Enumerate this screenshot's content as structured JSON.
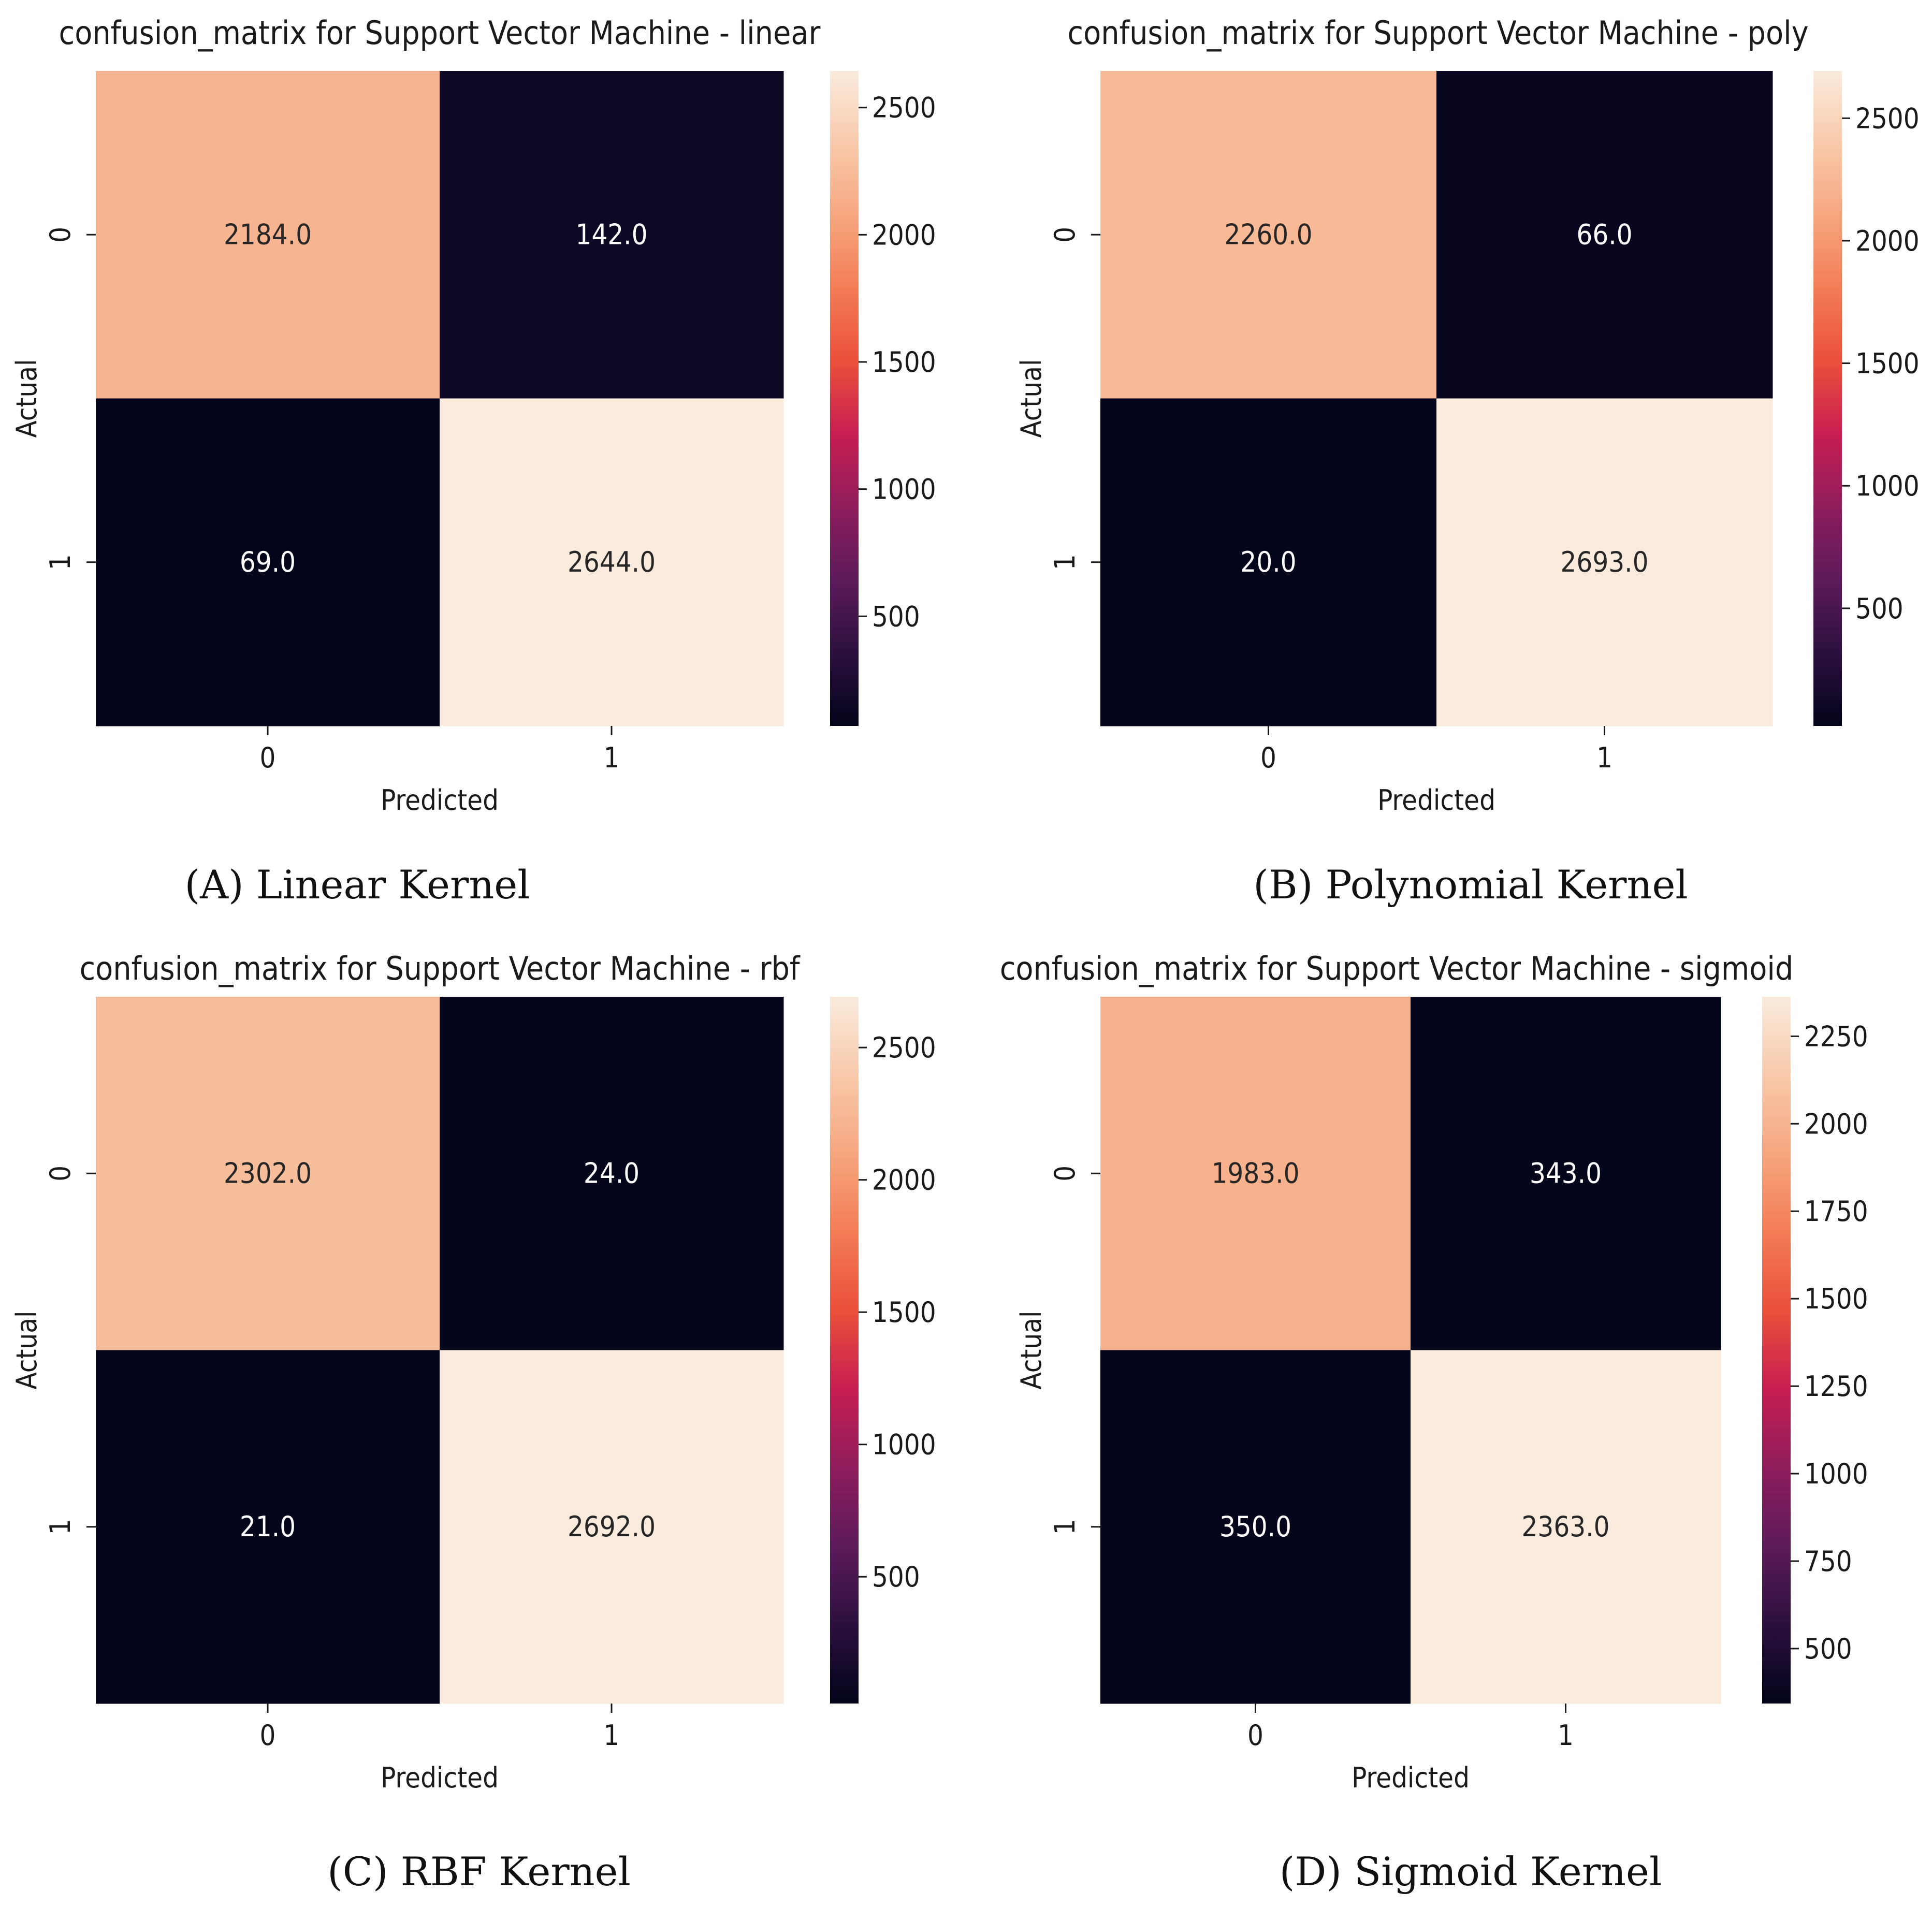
{
  "colormap": [
    "#03051a",
    "#2b0f3e",
    "#5c1a5b",
    "#8e1d5c",
    "#c61e52",
    "#ea4f3a",
    "#f37c55",
    "#f6a67f",
    "#f8c9aa",
    "#faebdd"
  ],
  "chart_data": [
    {
      "type": "heatmap",
      "title": "confusion_matrix for Support Vector Machine - linear",
      "caption": "(A) Linear Kernel",
      "xlabel": "Predicted",
      "ylabel": "Actual",
      "x_ticks": [
        "0",
        "1"
      ],
      "y_ticks": [
        "0",
        "1"
      ],
      "values": [
        [
          2184,
          142
        ],
        [
          69,
          2644
        ]
      ],
      "cell_labels": [
        [
          "2184.0",
          "142.0"
        ],
        [
          "69.0",
          "2644.0"
        ]
      ],
      "vmin": 69,
      "vmax": 2644,
      "colorbar_ticks": [
        500,
        1000,
        1500,
        2000,
        2500
      ],
      "colorbar_tick_labels": [
        "500",
        "1000",
        "1500",
        "2000",
        "2500"
      ]
    },
    {
      "type": "heatmap",
      "title": "confusion_matrix for Support Vector Machine - poly",
      "caption": "(B) Polynomial Kernel",
      "xlabel": "Predicted",
      "ylabel": "Actual",
      "x_ticks": [
        "0",
        "1"
      ],
      "y_ticks": [
        "0",
        "1"
      ],
      "values": [
        [
          2260,
          66
        ],
        [
          20,
          2693
        ]
      ],
      "cell_labels": [
        [
          "2260.0",
          "66.0"
        ],
        [
          "20.0",
          "2693.0"
        ]
      ],
      "vmin": 20,
      "vmax": 2693,
      "colorbar_ticks": [
        500,
        1000,
        1500,
        2000,
        2500
      ],
      "colorbar_tick_labels": [
        "500",
        "1000",
        "1500",
        "2000",
        "2500"
      ]
    },
    {
      "type": "heatmap",
      "title": "confusion_matrix for Support Vector Machine - rbf",
      "caption": "(C) RBF Kernel",
      "xlabel": "Predicted",
      "ylabel": "Actual",
      "x_ticks": [
        "0",
        "1"
      ],
      "y_ticks": [
        "0",
        "1"
      ],
      "values": [
        [
          2302,
          24
        ],
        [
          21,
          2692
        ]
      ],
      "cell_labels": [
        [
          "2302.0",
          "24.0"
        ],
        [
          "21.0",
          "2692.0"
        ]
      ],
      "vmin": 21,
      "vmax": 2692,
      "colorbar_ticks": [
        500,
        1000,
        1500,
        2000,
        2500
      ],
      "colorbar_tick_labels": [
        "500",
        "1000",
        "1500",
        "2000",
        "2500"
      ]
    },
    {
      "type": "heatmap",
      "title": "confusion_matrix for Support Vector Machine - sigmoid",
      "caption": "(D) Sigmoid Kernel",
      "xlabel": "Predicted",
      "ylabel": "Actual",
      "x_ticks": [
        "0",
        "1"
      ],
      "y_ticks": [
        "0",
        "1"
      ],
      "values": [
        [
          1983,
          343
        ],
        [
          350,
          2363
        ]
      ],
      "cell_labels": [
        [
          "1983.0",
          "343.0"
        ],
        [
          "350.0",
          "2363.0"
        ]
      ],
      "vmin": 343,
      "vmax": 2363,
      "colorbar_ticks": [
        500,
        750,
        1000,
        1250,
        1500,
        1750,
        2000,
        2250
      ],
      "colorbar_tick_labels": [
        "500",
        "750",
        "1000",
        "1250",
        "1500",
        "1750",
        "2000",
        "2250"
      ]
    }
  ]
}
